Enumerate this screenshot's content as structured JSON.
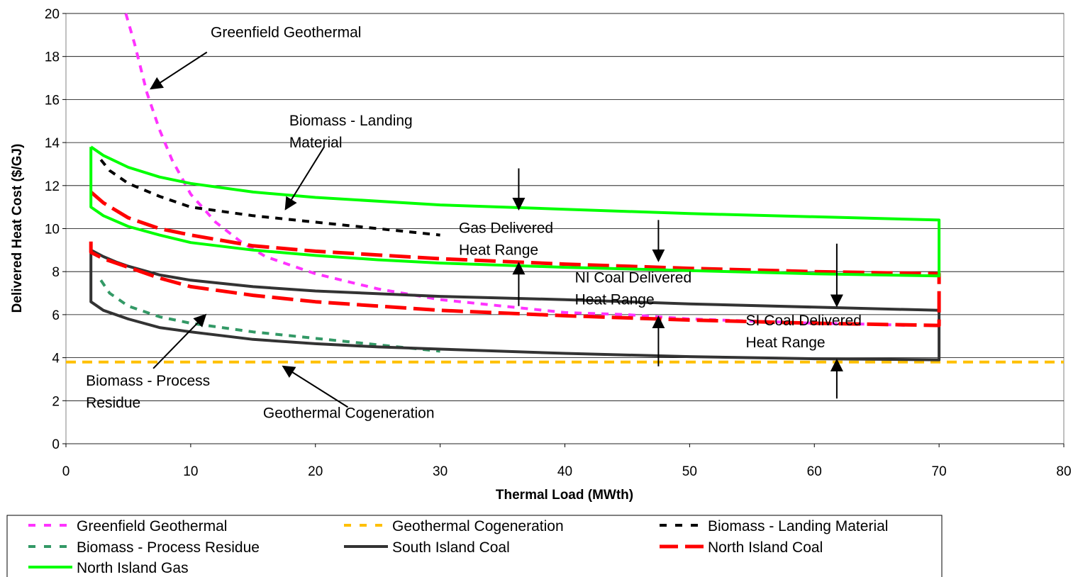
{
  "chart_data": {
    "type": "line",
    "title": "",
    "xlabel": "Thermal Load (MWth)",
    "ylabel": "Delivered Heat Cost ($/GJ)",
    "xlim": [
      0,
      80
    ],
    "ylim": [
      0,
      20
    ],
    "x_ticks": [
      "0",
      "10",
      "20",
      "30",
      "40",
      "50",
      "60",
      "70",
      "80"
    ],
    "y_ticks": [
      "0",
      "2",
      "4",
      "6",
      "8",
      "10",
      "12",
      "14",
      "16",
      "18",
      "20"
    ],
    "grid": "horizontal",
    "legend_position": "bottom",
    "series": [
      {
        "name": "Greenfield Geothermal",
        "color": "#ff33ff",
        "style": "dashed",
        "x": [
          4.8,
          5.5,
          6.5,
          7.5,
          8.5,
          10,
          12,
          14,
          16,
          18,
          20,
          25,
          30,
          35,
          40,
          45,
          50,
          55,
          60,
          65,
          67.5
        ],
        "y": [
          20,
          18.6,
          16.3,
          14.6,
          13.2,
          11.6,
          10.3,
          9.4,
          8.7,
          8.3,
          7.9,
          7.2,
          6.7,
          6.4,
          6.1,
          6.0,
          5.8,
          5.7,
          5.6,
          5.55,
          5.5
        ]
      },
      {
        "name": "Geothermal Cogeneration",
        "color": "#ffc000",
        "style": "dashed",
        "x": [
          0,
          80
        ],
        "y": [
          3.8,
          3.8
        ]
      },
      {
        "name": "Biomass - Landing Material",
        "color": "#000000",
        "style": "dashed",
        "x": [
          2.8,
          3.5,
          5,
          7.5,
          10,
          15,
          20,
          25,
          30
        ],
        "y": [
          13.2,
          12.7,
          12.1,
          11.5,
          11.0,
          10.6,
          10.3,
          10.0,
          9.7
        ]
      },
      {
        "name": "Biomass - Process Residue",
        "color": "#339966",
        "style": "dashed",
        "x": [
          2.8,
          3.5,
          5,
          7.5,
          10,
          15,
          20,
          25,
          30
        ],
        "y": [
          7.6,
          7.0,
          6.4,
          5.9,
          5.6,
          5.2,
          4.9,
          4.6,
          4.3
        ]
      },
      {
        "name": "South Island Coal",
        "color": "#333333",
        "style": "solid",
        "x": [
          2,
          2,
          3,
          5,
          7.5,
          10,
          15,
          20,
          25,
          30,
          40,
          50,
          60,
          70,
          70,
          60,
          50,
          40,
          30,
          20,
          15,
          10,
          7.5,
          5,
          4,
          3,
          2
        ],
        "y": [
          9.0,
          6.6,
          6.2,
          5.8,
          5.4,
          5.2,
          4.85,
          4.65,
          4.5,
          4.4,
          4.2,
          4.05,
          3.95,
          3.9,
          6.2,
          6.35,
          6.5,
          6.7,
          6.85,
          7.1,
          7.3,
          7.6,
          7.85,
          8.25,
          8.45,
          8.7,
          9.0
        ]
      },
      {
        "name": "North Island Coal",
        "color": "#ff0000",
        "style": "dashed",
        "x": [
          2,
          2,
          3,
          5,
          7.5,
          10,
          15,
          20,
          25,
          30,
          40,
          50,
          60,
          70,
          70,
          60,
          50,
          40,
          30,
          20,
          15,
          10,
          7.5,
          5,
          3,
          2
        ],
        "y": [
          9.4,
          8.9,
          8.6,
          8.2,
          7.7,
          7.3,
          6.9,
          6.6,
          6.4,
          6.2,
          5.95,
          5.75,
          5.6,
          5.5,
          7.9,
          8.0,
          8.15,
          8.35,
          8.6,
          8.95,
          9.2,
          9.7,
          10.0,
          10.5,
          11.2,
          11.7
        ]
      },
      {
        "name": "North Island Gas",
        "color": "#00ff00",
        "style": "solid",
        "x": [
          2,
          2,
          3,
          5,
          7.5,
          10,
          15,
          20,
          25,
          30,
          40,
          50,
          60,
          70,
          70,
          60,
          50,
          40,
          30,
          20,
          15,
          10,
          7.5,
          5,
          3,
          2
        ],
        "y": [
          13.8,
          11.0,
          10.6,
          10.1,
          9.7,
          9.35,
          9.0,
          8.75,
          8.55,
          8.4,
          8.2,
          8.05,
          7.9,
          7.8,
          10.4,
          10.55,
          10.7,
          10.9,
          11.1,
          11.45,
          11.7,
          12.1,
          12.4,
          12.85,
          13.4,
          13.8
        ]
      }
    ],
    "annotations": [
      {
        "lines": [
          "Greenfield Geothermal"
        ],
        "at": [
          11.6,
          18.9
        ],
        "arrow_from": [
          11.3,
          18.2
        ],
        "arrow_to": [
          6.8,
          16.5
        ]
      },
      {
        "lines": [
          "Biomass - Landing",
          "Material"
        ],
        "at": [
          17.9,
          14.8
        ],
        "arrow_from": [
          20.7,
          13.8
        ],
        "arrow_to": [
          17.6,
          10.9
        ]
      },
      {
        "lines": [
          "Gas Delivered",
          "Heat Range"
        ],
        "at": [
          31.5,
          9.8
        ],
        "arrow_from": null,
        "arrow_to": null
      },
      {
        "lines": [
          "NI Coal Delivered",
          "Heat Range"
        ],
        "at": [
          40.8,
          7.5
        ],
        "arrow_from": null,
        "arrow_to": null
      },
      {
        "lines": [
          "SI Coal Delivered",
          "Heat Range"
        ],
        "at": [
          54.5,
          5.5
        ],
        "arrow_from": null,
        "arrow_to": null
      },
      {
        "lines": [
          "Biomass - Process",
          "Residue"
        ],
        "at": [
          1.6,
          2.7
        ],
        "arrow_from": [
          7.0,
          3.5
        ],
        "arrow_to": [
          11.2,
          6.0
        ]
      },
      {
        "lines": [
          "Geothermal Cogeneration"
        ],
        "at": [
          15.8,
          1.2
        ],
        "arrow_from": [
          22.6,
          1.7
        ],
        "arrow_to": [
          17.4,
          3.6
        ]
      }
    ],
    "range_arrows": [
      {
        "x": 36.3,
        "y_from": 12.8,
        "y_to": 10.9
      },
      {
        "x": 36.3,
        "y_from": 6.4,
        "y_to": 8.4
      },
      {
        "x": 47.5,
        "y_from": 10.4,
        "y_to": 8.5
      },
      {
        "x": 47.5,
        "y_from": 3.6,
        "y_to": 5.9
      },
      {
        "x": 61.8,
        "y_from": 9.3,
        "y_to": 6.4
      },
      {
        "x": 61.8,
        "y_from": 2.1,
        "y_to": 3.9
      }
    ]
  }
}
